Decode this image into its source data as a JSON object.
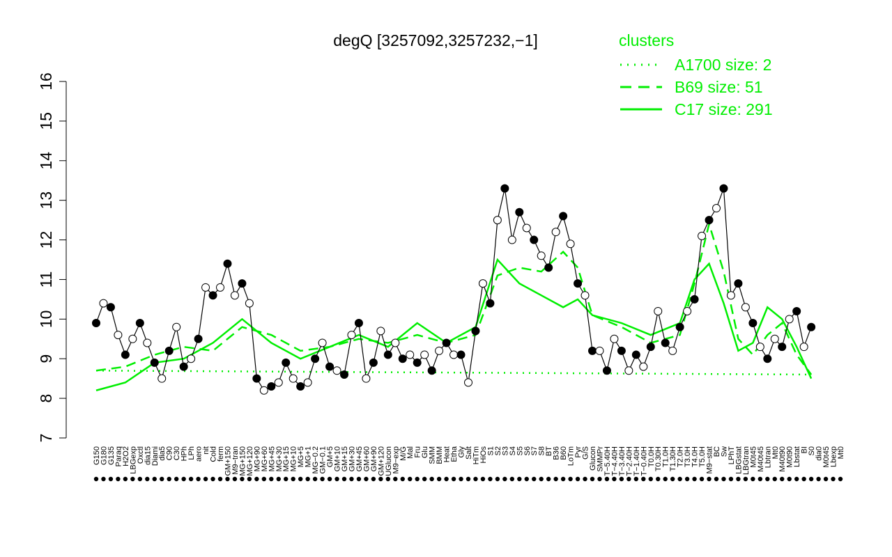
{
  "chart_data": {
    "type": "line",
    "title": "degQ [3257092,3257232,−1]",
    "xlabel": "",
    "ylabel": "",
    "ylim": [
      7,
      16
    ],
    "yticks": [
      7,
      8,
      9,
      10,
      11,
      12,
      13,
      14,
      15,
      16
    ],
    "grid": false,
    "legend": {
      "title": "clusters",
      "position": "top-right",
      "color": "#00ee00",
      "entries": [
        {
          "label": "A1700 size: 2",
          "style": "dotted"
        },
        {
          "label": "B69 size: 51",
          "style": "dashed"
        },
        {
          "label": "C17 size: 291",
          "style": "solid"
        }
      ]
    },
    "x_tick_labels": [
      "G150",
      "G180",
      "G135",
      "Paraq",
      "H2O2",
      "LBGexp",
      "Oxctl",
      "dia15",
      "Diami",
      "dia5",
      "C90",
      "C30",
      "HPh",
      "LPh",
      "aero",
      "nit",
      "Cold",
      "ferm",
      "GM+150",
      "M9−tran",
      "MG+150",
      "MG+120",
      "MG+90",
      "MG+60",
      "MG+45",
      "MG+30",
      "MG+15",
      "MG+10",
      "MG+5",
      "MG+1",
      "MG−0.2",
      "GM−0.1",
      "GM+5",
      "GM+10",
      "GM+15",
      "GM+30",
      "GM+45",
      "GM+60",
      "GM+90",
      "GM+120",
      "UGlucon",
      "M9−exp",
      "M/G",
      "Mal",
      "Fru",
      "Glu",
      "SMM",
      "BMM",
      "Heat",
      "Etha",
      "Gly",
      "Salt",
      "HiTm",
      "HiOs",
      "S1",
      "S2",
      "S3",
      "S4",
      "S5",
      "S6",
      "S7",
      "S8",
      "BT",
      "B36",
      "B60",
      "LoTm",
      "Pyr",
      "G/S",
      "Glucon",
      "SMMPr",
      "T−5.40H",
      "T−4.40H",
      "T−3.40H",
      "T−2.40H",
      "T−1.40H",
      "T−0.40H",
      "T0.0H",
      "T0.30H",
      "T1.0H",
      "T1.30H",
      "T2.0H",
      "T3.0H",
      "T4.0H",
      "T5.0H",
      "M9−stat",
      "BC",
      "Sw",
      "LPhT",
      "LBGstat",
      "LBGtran",
      "M0t45",
      "M40t45",
      "Lbtran",
      "Mt0",
      "M40t90",
      "M0t90",
      "Lbstat",
      "BI",
      "S0",
      "dia0",
      "M0t45",
      "Lbexp",
      "Mt0"
    ],
    "series": [
      {
        "name": "A1700 size: 2",
        "style": "dotted",
        "color": "#00ee00",
        "x": [
          0,
          98
        ],
        "values": [
          8.7,
          8.6
        ]
      },
      {
        "name": "B69 size: 51",
        "style": "dashed",
        "color": "#00ee00",
        "x": [
          0,
          4,
          8,
          12,
          16,
          20,
          24,
          28,
          32,
          36,
          40,
          44,
          48,
          52,
          55,
          58,
          61,
          64,
          66,
          68,
          72,
          76,
          80,
          82,
          84,
          86,
          88,
          90,
          92,
          94,
          96,
          98
        ],
        "values": [
          8.7,
          8.8,
          9.1,
          9.3,
          9.2,
          9.8,
          9.6,
          9.2,
          9.3,
          9.5,
          9.4,
          9.6,
          9.4,
          9.6,
          11.1,
          11.3,
          11.2,
          11.7,
          11.3,
          10.1,
          9.8,
          9.4,
          9.6,
          10.9,
          12.4,
          11.2,
          9.5,
          9.1,
          9.6,
          9.9,
          9.1,
          8.6
        ]
      },
      {
        "name": "C17 size: 291",
        "style": "solid",
        "color": "#00ee00",
        "x": [
          0,
          4,
          8,
          12,
          16,
          20,
          24,
          28,
          32,
          36,
          40,
          44,
          48,
          52,
          55,
          58,
          61,
          64,
          66,
          68,
          72,
          76,
          80,
          82,
          84,
          86,
          88,
          90,
          92,
          94,
          96,
          98
        ],
        "values": [
          8.2,
          8.4,
          8.9,
          9.0,
          9.4,
          10.0,
          9.4,
          9.0,
          9.3,
          9.6,
          9.3,
          9.9,
          9.4,
          9.8,
          11.5,
          10.9,
          10.6,
          10.3,
          10.5,
          10.1,
          9.9,
          9.6,
          9.9,
          11.0,
          11.4,
          10.4,
          9.2,
          9.4,
          10.3,
          10.0,
          9.3,
          8.5
        ]
      },
      {
        "name": "",
        "style": "points-line",
        "color": "#000000",
        "x": [
          0,
          1,
          2,
          3,
          4,
          5,
          6,
          7,
          8,
          9,
          10,
          11,
          12,
          13,
          14,
          15,
          16,
          17,
          18,
          19,
          20,
          21,
          22,
          23,
          24,
          25,
          26,
          27,
          28,
          29,
          30,
          31,
          32,
          33,
          34,
          35,
          36,
          37,
          38,
          39,
          40,
          41,
          42,
          43,
          44,
          45,
          46,
          47,
          48,
          49,
          50,
          51,
          52,
          53,
          54,
          55,
          56,
          57,
          58,
          59,
          60,
          61,
          62,
          63,
          64,
          65,
          66,
          67,
          68,
          69,
          70,
          71,
          72,
          73,
          74,
          75,
          76,
          77,
          78,
          79,
          80,
          81,
          82,
          83,
          84,
          85,
          86,
          87,
          88,
          89,
          90,
          91,
          92,
          93,
          94,
          95,
          96,
          97,
          98
        ],
        "values": [
          9.9,
          10.4,
          10.3,
          9.6,
          9.1,
          9.5,
          9.9,
          9.4,
          8.9,
          8.5,
          9.2,
          9.8,
          8.8,
          9.0,
          9.5,
          10.8,
          10.6,
          10.8,
          11.4,
          10.6,
          10.9,
          10.4,
          8.5,
          8.2,
          8.3,
          8.4,
          8.9,
          8.5,
          8.3,
          8.4,
          9.0,
          9.4,
          8.8,
          8.7,
          8.6,
          9.6,
          9.9,
          8.5,
          8.9,
          9.7,
          9.1,
          9.4,
          9.0,
          9.1,
          8.9,
          9.1,
          8.7,
          9.2,
          9.4,
          9.1,
          9.1,
          8.4,
          9.7,
          10.9,
          10.4,
          12.5,
          13.3,
          12.0,
          12.7,
          12.3,
          12.0,
          11.6,
          11.3,
          12.2,
          12.6,
          11.9,
          10.9,
          10.6,
          9.2,
          9.2,
          8.7,
          9.5,
          9.2,
          8.7,
          9.1,
          8.8,
          9.3,
          10.2,
          9.4,
          9.2,
          9.8,
          10.2,
          10.5,
          12.1,
          12.5,
          12.8,
          13.3,
          10.6,
          10.9,
          10.3,
          9.9,
          9.3,
          9.0,
          9.5,
          9.3,
          10.0,
          10.2,
          9.3,
          9.8
        ]
      }
    ]
  }
}
